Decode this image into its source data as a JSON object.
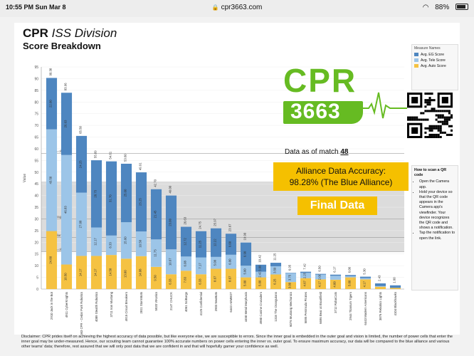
{
  "status_bar": {
    "time": "10:55 PM   Sun Mar 8",
    "url": "cpr3663.com",
    "battery": "88%"
  },
  "header": {
    "team": "CPR",
    "division": "ISS Division",
    "subtitle": "Score Breakdown"
  },
  "logo": {
    "word": "CPR",
    "number": "3663"
  },
  "data_as_of": {
    "text": "Data as of match",
    "match": "48"
  },
  "accuracy": {
    "line1": "Alliance Data Accuracy:",
    "line2": "98.28% (The Blue Alliance)"
  },
  "final_label": "Final Data",
  "legend": {
    "title": "Measure Names",
    "items": [
      {
        "label": "Avg. EG Score",
        "color": "#4e86c0"
      },
      {
        "label": "Avg. Tele Score",
        "color": "#9cc5e8"
      },
      {
        "label": "Avg. Auto Score",
        "color": "#f5c242"
      }
    ]
  },
  "qr_help": {
    "title": "How to scan a QR code",
    "steps": [
      "Open the Camera app.",
      "Hold your device so that the QR code appears in the Camera app's viewfinder. Your device recognizes the QR code and shows a notification.",
      "Tap the notification to open the link."
    ]
  },
  "chart_data": {
    "type": "bar",
    "stacked": true,
    "ylabel": "Value",
    "ylim": [
      0,
      95
    ],
    "yticks": [
      0,
      5,
      10,
      15,
      20,
      25,
      30,
      35,
      40,
      45,
      50,
      55,
      60,
      65,
      70,
      75,
      80,
      85,
      90,
      95
    ],
    "categories": [
      "2910 Jack in the Bot",
      "4911 CyberKnights",
      "3663 CPR - Cedar Park Robotics",
      "4089 Stealth Robotics",
      "3711 Iron Mustang",
      "4915 Circuit Breakers",
      "2811 StormBots",
      "5920 VIKotics",
      "2147 CHUCK",
      "4061 SciBorgs",
      "4125 Confidential",
      "2903 NeoBots",
      "6443 AEMBOT",
      "4450 Metal Morphosis",
      "4980 Canine Crusaders",
      "1318 The Orangutans",
      "6076 Mustang Mechanics",
      "5895 Peninsula Pirates",
      "6696 Bear at Brookfield",
      "3712 RoboCats",
      "2944 Titanium Tigers",
      "6443 Modern Americans",
      "3876 Rebotics Lights",
      "4104 Blackhawks"
    ],
    "series": [
      {
        "name": "Avg. Auto Score",
        "color": "#f5c242",
        "values": [
          24.8,
          10.5,
          14.17,
          14.17,
          14.58,
          13.0,
          14.08,
          9.5,
          6.33,
          7.83,
          6.33,
          8.67,
          8.67,
          5.0,
          5.0,
          6.25,
          3.0,
          4.67,
          4.17,
          4.0,
          5.0,
          4.17,
          1.0,
          0.5
        ]
      },
      {
        "name": "Avg. Tele Score",
        "color": "#9cc5e8",
        "values": [
          43.5,
          46.83,
          27.08,
          12.17,
          8.33,
          15.6,
          10.58,
          11.75,
          10.67,
          6.08,
          7.17,
          5.08,
          6.0,
          5.0,
          2.42,
          3.5,
          3.75,
          2.25,
          2.0,
          1.67,
          0.5,
          0.5,
          0.25,
          0.0
        ]
      },
      {
        "name": "Avg. EG Score",
        "color": "#4e86c0",
        "values": [
          22.0,
          26.63,
          24.25,
          28.75,
          31.7,
          25.0,
          25.25,
          21.45,
          23.0,
          12.72,
          11.25,
          12.22,
          9.0,
          9.9,
          3.0,
          1.5,
          0.2,
          0.5,
          0.33,
          0.5,
          0.5,
          0.63,
          1.18,
          1.1
        ]
      }
    ],
    "totals": [
      90.3,
      83.96,
      65.5,
      55.09,
      54.61,
      53.6,
      49.91,
      42.7,
      40.0,
      26.63,
      24.75,
      25.97,
      23.67,
      19.9,
      10.42,
      11.25,
      6.95,
      7.42,
      6.5,
      6.17,
      6.0,
      5.3,
      2.43,
      1.6
    ],
    "bar_labels": [
      {
        "eg": "22.00",
        "tele": "43.50",
        "auto": "24.80"
      },
      {
        "eg": "26.63",
        "tele": "46.83",
        "auto": "10.50"
      },
      {
        "eg": "24.25",
        "tele": "27.08",
        "auto": "14.17"
      },
      {
        "eg": "28.75",
        "tele": "12.17",
        "auto": "14.17"
      },
      {
        "eg": "31.70",
        "tele": "8.33",
        "auto": "14.58"
      },
      {
        "eg": "25.00",
        "tele": "15.60",
        "auto": "13.00"
      },
      {
        "eg": "25.25",
        "tele": "10.58",
        "auto": "14.08"
      },
      {
        "eg": "21.45",
        "tele": "11.75",
        "auto": "9.50"
      },
      {
        "eg": "23.00",
        "tele": "10.67",
        "auto": "6.33"
      },
      {
        "eg": "12.72",
        "tele": "6.08",
        "auto": "7.83"
      },
      {
        "eg": "11.25",
        "tele": "7.17",
        "auto": "6.33"
      },
      {
        "eg": "12.22",
        "tele": "5.08",
        "auto": "8.67"
      },
      {
        "eg": "9.00",
        "tele": "6.00",
        "auto": "8.67"
      },
      {
        "eg": "9.90",
        "tele": "5.00",
        "auto": "5.00"
      },
      {
        "eg": "3.00",
        "tele": "2.42",
        "auto": "5.00"
      },
      {
        "eg": "1.50",
        "tele": "3.50",
        "auto": "6.25"
      },
      {
        "eg": "",
        "tele": "3.75",
        "auto": "3.00"
      },
      {
        "eg": "",
        "tele": "2.25",
        "auto": "4.67"
      },
      {
        "eg": "",
        "tele": "2.00",
        "auto": "4.17"
      },
      {
        "eg": "",
        "tele": "1.67",
        "auto": "4.00"
      },
      {
        "eg": "",
        "tele": "",
        "auto": "5.00"
      },
      {
        "eg": "",
        "tele": "",
        "auto": "4.17"
      },
      {
        "eg": "",
        "tele": "",
        "auto": ""
      },
      {
        "eg": "",
        "tele": "",
        "auto": ""
      }
    ],
    "reference_lines": [
      {
        "label": "50% of Total",
        "value": 58
      },
      {
        "label": "Average",
        "value": 30
      },
      {
        "label": "Median",
        "value": 22
      },
      {
        "label": "50% of Total",
        "value": 16
      }
    ],
    "reference_band": [
      16,
      46
    ]
  },
  "disclaimer": "Disclaimer: CPR prides itself on achieving the highest accuracy of data possible, but like everyone else, we are susceptible to errors. Since the inner goal is embedded in the outer goal and vision is limited, the number of power cells that enter the inner goal may be under-measured. Hence, our scouting team cannot guarantee 100% accurate numbers on power cells entering the inner vs. outer goal. To ensure maximum accuracy, our data will be compared to the blue alliance and various other teams' data; therefore, rest assured that we will only post data that we are confident in and that will hopefully garner your confidence as well."
}
